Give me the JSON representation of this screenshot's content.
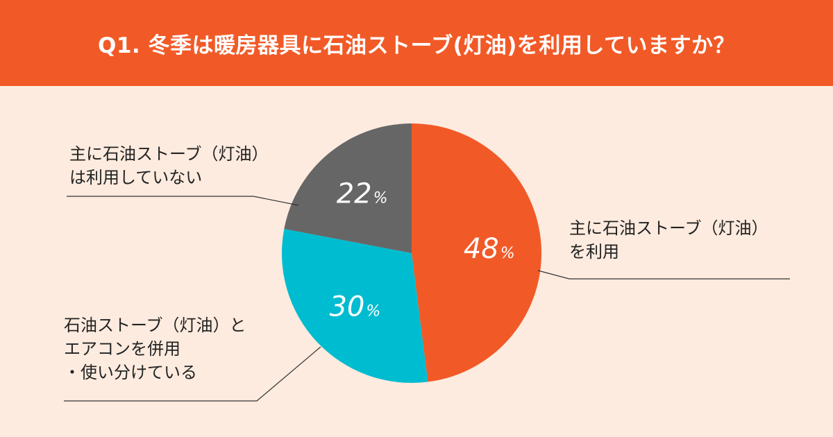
{
  "header": {
    "title": "Q1. 冬季は暖房器具に石油ストーブ(灯油)を利用していますか？"
  },
  "colors": {
    "header_bg": "#F15A27",
    "background": "#FDEBDF",
    "text": "#222222",
    "leader_line": "#333333"
  },
  "chart_data": {
    "type": "pie",
    "title": "Q1. 冬季は暖房器具に石油ストーブ(灯油)を利用していますか？",
    "start_angle_deg": 0,
    "direction": "clockwise",
    "slices": [
      {
        "label": "主に石油ストーブ（灯油）\nを利用",
        "value": 48,
        "value_label": "48",
        "unit": "%",
        "color": "#F15A27"
      },
      {
        "label": "石油ストーブ（灯油）と\nエアコンを併用\n・使い分けている",
        "value": 30,
        "value_label": "30",
        "unit": "%",
        "color": "#00BCD0"
      },
      {
        "label": "主に石油ストーブ（灯油）\nは利用していない",
        "value": 22,
        "value_label": "22",
        "unit": "%",
        "color": "#666666"
      }
    ]
  }
}
